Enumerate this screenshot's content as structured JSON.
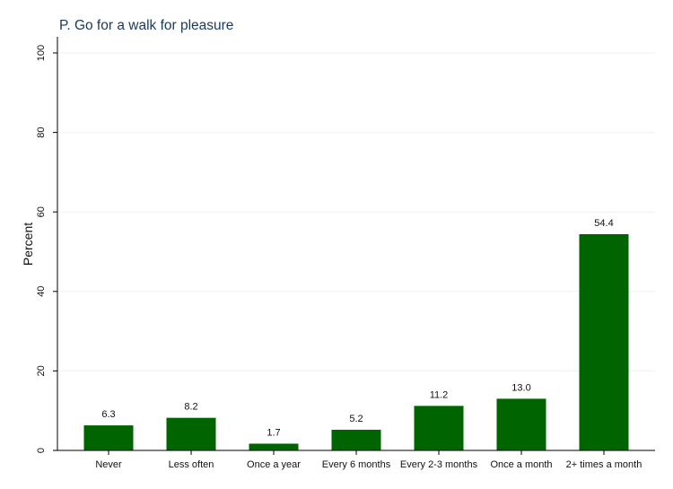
{
  "chart_data": {
    "type": "bar",
    "title": "P. Go for a walk for pleasure",
    "xlabel": "",
    "ylabel": "Percent",
    "ylim": [
      0,
      100
    ],
    "yticks": [
      0,
      20,
      40,
      60,
      80,
      100
    ],
    "ytick_labels": [
      "0",
      "20",
      "40",
      "60",
      "80",
      "100"
    ],
    "categories": [
      "Never",
      "Less often",
      "Once a year",
      "Every 6 months",
      "Every 2-3 months",
      "Once a month",
      "2+ times a month"
    ],
    "values": [
      6.3,
      8.2,
      1.7,
      5.2,
      11.2,
      13.0,
      54.4
    ],
    "value_labels": [
      "6.3",
      "8.2",
      "1.7",
      "5.2",
      "11.2",
      "13.0",
      "54.4"
    ],
    "grid": true,
    "bar_color": "#006400"
  }
}
